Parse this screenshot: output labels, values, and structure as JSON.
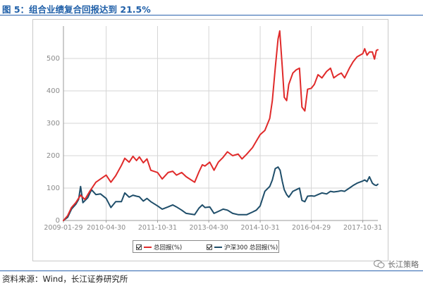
{
  "header": {
    "title": "图 5：组合业绩复合回报达到 21.5%"
  },
  "footer": {
    "source": "资料来源：Wind，长江证券研究所",
    "watermark": "长江策略"
  },
  "colors": {
    "accent": "#1f5fa8",
    "total_return": "#e02a2a",
    "hs300_total_return": "#1f4e6a",
    "axis_text": "#8a8a8a"
  },
  "chart_data": {
    "type": "line",
    "title": "",
    "xlabel": "",
    "ylabel": "",
    "xlim": [
      "2009-01-29",
      "2018-04-10"
    ],
    "ylim": [
      0,
      600
    ],
    "yticks": [
      0,
      100,
      200,
      300,
      400,
      500
    ],
    "xticks": [
      "2009-01-29",
      "2010-04-30",
      "2011-10-31",
      "2013-04-30",
      "2014-10-31",
      "2016-04-29",
      "2017-10-31"
    ],
    "grid": true,
    "legend_position": "bottom-center",
    "series": [
      {
        "name": "总回报(%)",
        "color": "#e02a2a",
        "points": [
          [
            "2009-01-29",
            0
          ],
          [
            "2009-03-15",
            15
          ],
          [
            "2009-04-25",
            40
          ],
          [
            "2009-06-10",
            55
          ],
          [
            "2009-07-31",
            78
          ],
          [
            "2009-09-15",
            65
          ],
          [
            "2009-11-10",
            92
          ],
          [
            "2010-01-10",
            118
          ],
          [
            "2010-03-01",
            128
          ],
          [
            "2010-04-30",
            140
          ],
          [
            "2010-06-20",
            118
          ],
          [
            "2010-08-10",
            138
          ],
          [
            "2010-10-10",
            170
          ],
          [
            "2010-11-15",
            192
          ],
          [
            "2011-01-01",
            180
          ],
          [
            "2011-02-10",
            198
          ],
          [
            "2011-03-20",
            185
          ],
          [
            "2011-04-20",
            196
          ],
          [
            "2011-06-01",
            178
          ],
          [
            "2011-07-10",
            190
          ],
          [
            "2011-08-20",
            155
          ],
          [
            "2011-10-31",
            148
          ],
          [
            "2011-12-20",
            128
          ],
          [
            "2012-02-20",
            148
          ],
          [
            "2012-04-10",
            152
          ],
          [
            "2012-05-20",
            140
          ],
          [
            "2012-07-15",
            148
          ],
          [
            "2012-09-01",
            135
          ],
          [
            "2012-11-30",
            118
          ],
          [
            "2013-01-15",
            150
          ],
          [
            "2013-02-20",
            172
          ],
          [
            "2013-03-20",
            168
          ],
          [
            "2013-05-10",
            180
          ],
          [
            "2013-06-25",
            155
          ],
          [
            "2013-08-10",
            180
          ],
          [
            "2013-09-30",
            195
          ],
          [
            "2013-11-15",
            212
          ],
          [
            "2014-01-10",
            200
          ],
          [
            "2014-03-10",
            205
          ],
          [
            "2014-04-20",
            190
          ],
          [
            "2014-06-10",
            205
          ],
          [
            "2014-08-10",
            225
          ],
          [
            "2014-09-20",
            245
          ],
          [
            "2014-10-31",
            265
          ],
          [
            "2014-12-20",
            278
          ],
          [
            "2015-02-10",
            315
          ],
          [
            "2015-03-10",
            370
          ],
          [
            "2015-04-10",
            470
          ],
          [
            "2015-05-10",
            560
          ],
          [
            "2015-05-28",
            585
          ],
          [
            "2015-06-25",
            470
          ],
          [
            "2015-07-15",
            380
          ],
          [
            "2015-08-10",
            370
          ],
          [
            "2015-09-01",
            420
          ],
          [
            "2015-10-15",
            455
          ],
          [
            "2015-11-20",
            465
          ],
          [
            "2015-12-25",
            470
          ],
          [
            "2016-01-20",
            350
          ],
          [
            "2016-02-20",
            338
          ],
          [
            "2016-03-20",
            405
          ],
          [
            "2016-04-29",
            408
          ],
          [
            "2016-06-01",
            420
          ],
          [
            "2016-07-10",
            450
          ],
          [
            "2016-08-20",
            440
          ],
          [
            "2016-10-10",
            460
          ],
          [
            "2016-11-20",
            470
          ],
          [
            "2016-12-25",
            440
          ],
          [
            "2017-02-10",
            450
          ],
          [
            "2017-03-15",
            455
          ],
          [
            "2017-04-20",
            440
          ],
          [
            "2017-06-10",
            470
          ],
          [
            "2017-07-20",
            490
          ],
          [
            "2017-08-30",
            505
          ],
          [
            "2017-10-31",
            515
          ],
          [
            "2017-11-20",
            530
          ],
          [
            "2017-12-15",
            510
          ],
          [
            "2018-01-10",
            520
          ],
          [
            "2018-02-10",
            520
          ],
          [
            "2018-03-05",
            498
          ],
          [
            "2018-03-25",
            525
          ],
          [
            "2018-04-10",
            527
          ]
        ]
      },
      {
        "name": "沪深300 总回报(%)",
        "color": "#1f4e6a",
        "points": [
          [
            "2009-01-29",
            0
          ],
          [
            "2009-03-15",
            10
          ],
          [
            "2009-04-25",
            35
          ],
          [
            "2009-06-10",
            50
          ],
          [
            "2009-07-10",
            65
          ],
          [
            "2009-07-31",
            105
          ],
          [
            "2009-08-25",
            55
          ],
          [
            "2009-10-15",
            70
          ],
          [
            "2009-11-25",
            95
          ],
          [
            "2010-01-10",
            80
          ],
          [
            "2010-03-01",
            82
          ],
          [
            "2010-04-30",
            68
          ],
          [
            "2010-06-20",
            40
          ],
          [
            "2010-08-10",
            58
          ],
          [
            "2010-10-10",
            58
          ],
          [
            "2010-11-15",
            85
          ],
          [
            "2011-01-01",
            72
          ],
          [
            "2011-02-10",
            78
          ],
          [
            "2011-03-20",
            75
          ],
          [
            "2011-04-20",
            73
          ],
          [
            "2011-06-01",
            60
          ],
          [
            "2011-07-10",
            68
          ],
          [
            "2011-08-20",
            58
          ],
          [
            "2011-10-31",
            45
          ],
          [
            "2011-12-20",
            35
          ],
          [
            "2012-02-20",
            42
          ],
          [
            "2012-04-10",
            48
          ],
          [
            "2012-05-20",
            42
          ],
          [
            "2012-07-15",
            32
          ],
          [
            "2012-09-01",
            22
          ],
          [
            "2012-11-30",
            18
          ],
          [
            "2013-01-15",
            38
          ],
          [
            "2013-02-20",
            48
          ],
          [
            "2013-03-20",
            40
          ],
          [
            "2013-05-10",
            42
          ],
          [
            "2013-06-25",
            22
          ],
          [
            "2013-08-10",
            28
          ],
          [
            "2013-09-30",
            35
          ],
          [
            "2013-11-15",
            32
          ],
          [
            "2014-01-10",
            22
          ],
          [
            "2014-03-10",
            18
          ],
          [
            "2014-04-20",
            18
          ],
          [
            "2014-06-10",
            18
          ],
          [
            "2014-08-10",
            26
          ],
          [
            "2014-09-20",
            32
          ],
          [
            "2014-10-31",
            45
          ],
          [
            "2014-12-20",
            90
          ],
          [
            "2015-02-10",
            105
          ],
          [
            "2015-03-10",
            125
          ],
          [
            "2015-04-10",
            160
          ],
          [
            "2015-05-10",
            165
          ],
          [
            "2015-06-01",
            155
          ],
          [
            "2015-06-25",
            120
          ],
          [
            "2015-07-15",
            95
          ],
          [
            "2015-08-10",
            80
          ],
          [
            "2015-09-01",
            72
          ],
          [
            "2015-10-15",
            90
          ],
          [
            "2015-11-20",
            95
          ],
          [
            "2015-12-25",
            100
          ],
          [
            "2016-01-20",
            62
          ],
          [
            "2016-02-20",
            58
          ],
          [
            "2016-03-20",
            75
          ],
          [
            "2016-04-29",
            76
          ],
          [
            "2016-06-01",
            75
          ],
          [
            "2016-07-10",
            80
          ],
          [
            "2016-08-20",
            85
          ],
          [
            "2016-10-10",
            82
          ],
          [
            "2016-11-20",
            90
          ],
          [
            "2016-12-25",
            88
          ],
          [
            "2017-02-10",
            90
          ],
          [
            "2017-03-15",
            92
          ],
          [
            "2017-04-20",
            90
          ],
          [
            "2017-06-10",
            100
          ],
          [
            "2017-07-20",
            108
          ],
          [
            "2017-08-30",
            115
          ],
          [
            "2017-10-31",
            122
          ],
          [
            "2017-11-20",
            125
          ],
          [
            "2017-12-15",
            120
          ],
          [
            "2018-01-10",
            135
          ],
          [
            "2018-02-10",
            115
          ],
          [
            "2018-03-05",
            110
          ],
          [
            "2018-03-25",
            108
          ],
          [
            "2018-04-10",
            112
          ]
        ]
      }
    ]
  }
}
